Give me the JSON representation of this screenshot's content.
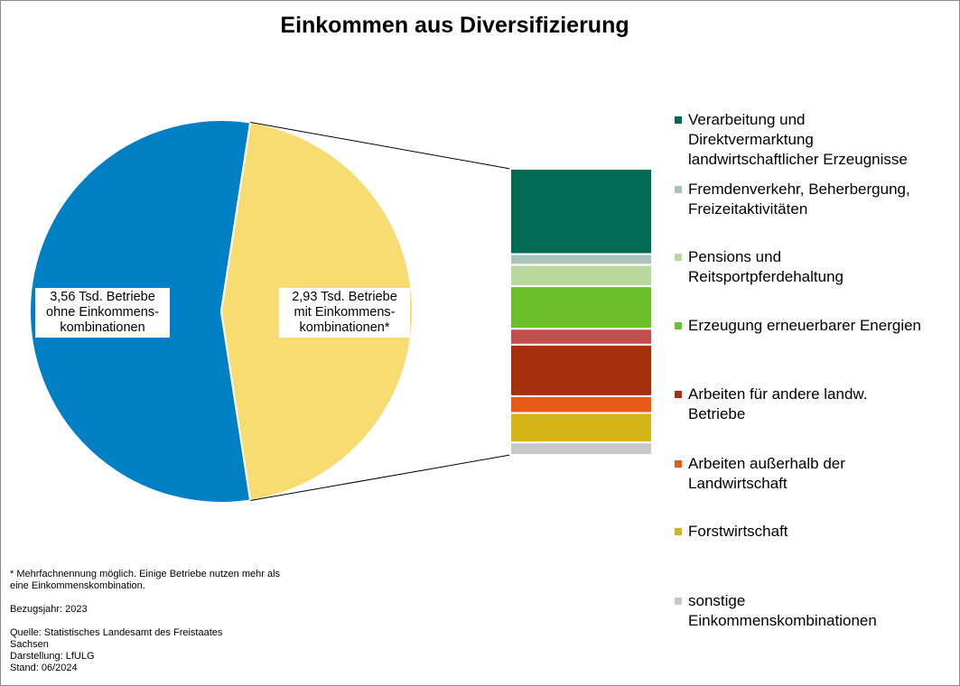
{
  "chart_data": {
    "type": "pie",
    "title": "Einkommen aus Diversifizierung",
    "pie": {
      "slices": [
        {
          "value": 3.56,
          "label": "3,56 Tsd. Betriebe\nohne Einkommens-\nkombinationen",
          "color": "#0080C4"
        },
        {
          "value": 2.93,
          "label": "2,93 Tsd. Betriebe\nmit Einkommens-\nkombinationen*",
          "color": "#F6DC71"
        }
      ]
    },
    "breakdown": {
      "total": 100,
      "segments": [
        {
          "value": 29.5,
          "name": "Verarbeitung und\nDirektvermarktung\nlandwirtschaftlicher Erzeugnisse",
          "color": "#006A52"
        },
        {
          "value": 3.7,
          "name": "Fremdenverkehr, Beherbergung,\nFreizeitaktivitäten",
          "color": "#A9C5BA"
        },
        {
          "value": 7.4,
          "name": "Pensions und\nReitsportpferdehaltung",
          "color": "#B8D89E"
        },
        {
          "value": 14.7,
          "name": "Erzeugung erneuerbarer Energien",
          "color": "#6BBF2A"
        },
        {
          "value": 5.5,
          "name": "",
          "color": "#C0504D"
        },
        {
          "value": 17.8,
          "name": "Arbeiten für andere landw.\nBetriebe",
          "color": "#A6300E"
        },
        {
          "value": 5.8,
          "name": "Arbeiten außerhalb der\nLandwirtschaft",
          "color": "#E85A17"
        },
        {
          "value": 10.2,
          "name": "Forstwirtschaft",
          "color": "#D7B416"
        },
        {
          "value": 4.3,
          "name": "sonstige\nEinkommenskombinationen",
          "color": "#C8C8C8"
        }
      ]
    }
  },
  "notes": {
    "footnote": "* Mehrfachnennung möglich. Einige Betriebe nutzen mehr als\neine Einkommenskombination.",
    "year": "Bezugsjahr: 2023",
    "source": "Quelle: Statistisches Landesamt des Freistaates\nSachsen\nDarstellung: LfULG\nStand: 06/2024"
  }
}
